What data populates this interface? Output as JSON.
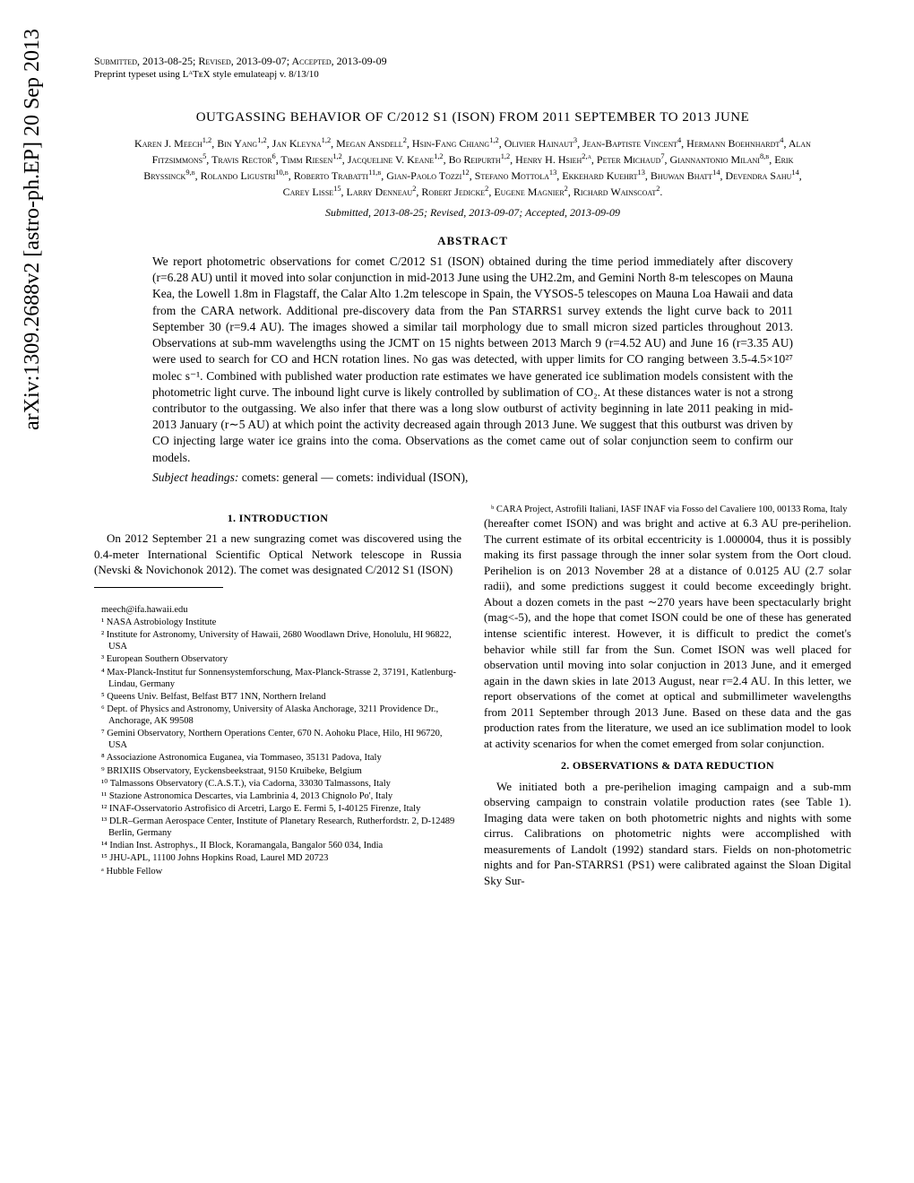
{
  "arxiv": "arXiv:1309.2688v2  [astro-ph.EP]  20 Sep 2013",
  "header": {
    "submitted": "Submitted, 2013-08-25; Revised, 2013-09-07; Accepted, 2013-09-09",
    "preprint": "Preprint typeset using LᴬTᴇX style emulateapj v. 8/13/10"
  },
  "title": "OUTGASSING BEHAVIOR OF C/2012 S1 (ISON) FROM 2011 SEPTEMBER TO 2013 JUNE",
  "authors_html": "Karen J. Meech<sup>1,2</sup>, Bin Yang<sup>1,2</sup>, Jan Kleyna<sup>1,2</sup>, Megan Ansdell<sup>2</sup>, Hsin-Fang Chiang<sup>1,2</sup>, Olivier Hainaut<sup>3</sup>, Jean-Baptiste Vincent<sup>4</sup>, Hermann Boehnhardt<sup>4</sup>, Alan Fitzsimmons<sup>5</sup>, Travis Rector<sup>6</sup>, Timm Riesen<sup>1,2</sup>, Jacqueline V. Keane<sup>1,2</sup>, Bo Reipurth<sup>1,2</sup>, Henry H. Hsieh<sup>2,a</sup>, Peter Michaud<sup>7</sup>, Giannantonio Milani<sup>8,b</sup>, Erik Bryssinck<sup>9,b</sup>, Rolando Ligustri<sup>10,b</sup>, Roberto Trabatti<sup>11,b</sup>, Gian-Paolo Tozzi<sup>12</sup>, Stefano Mottola<sup>13</sup>, Ekkehard Kuehrt<sup>13</sup>, Bhuwan Bhatt<sup>14</sup>, Devendra Sahu<sup>14</sup>, Carey Lisse<sup>15</sup>, Larry Denneau<sup>2</sup>, Robert Jedicke<sup>2</sup>, Eugene Magnier<sup>2</sup>, Richard Wainscoat<sup>2</sup>.",
  "submitted_center": "Submitted, 2013-08-25; Revised, 2013-09-07; Accepted, 2013-09-09",
  "abstract": {
    "heading": "ABSTRACT",
    "body": "We report photometric observations for comet C/2012 S1 (ISON) obtained during the time period immediately after discovery (r=6.28 AU) until it moved into solar conjunction in mid-2013 June using the UH2.2m, and Gemini North 8-m telescopes on Mauna Kea, the Lowell 1.8m in Flagstaff, the Calar Alto 1.2m telescope in Spain, the VYSOS-5 telescopes on Mauna Loa Hawaii and data from the CARA network. Additional pre-discovery data from the Pan STARRS1 survey extends the light curve back to 2011 September 30 (r=9.4 AU). The images showed a similar tail morphology due to small micron sized particles throughout 2013. Observations at sub-mm wavelengths using the JCMT on 15 nights between 2013 March 9 (r=4.52 AU) and June 16 (r=3.35 AU) were used to search for CO and HCN rotation lines. No gas was detected, with upper limits for CO ranging between 3.5-4.5×10²⁷ molec s⁻¹. Combined with published water production rate estimates we have generated ice sublimation models consistent with the photometric light curve. The inbound light curve is likely controlled by sublimation of CO₂. At these distances water is not a strong contributor to the outgassing. We also infer that there was a long slow outburst of activity beginning in late 2011 peaking in mid-2013 January (r∼5 AU) at which point the activity decreased again through 2013 June. We suggest that this outburst was driven by CO injecting large water ice grains into the coma. Observations as the comet came out of solar conjunction seem to confirm our models.",
    "subject_label": "Subject headings:",
    "subject_text": " comets: general — comets: individual (ISON),"
  },
  "sections": {
    "intro": {
      "heading": "1.  INTRODUCTION",
      "p1": "On 2012 September 21 a new sungrazing comet was discovered using the 0.4-meter International Scientific Optical Network telescope in Russia (Nevski & Novichonok 2012). The comet was designated C/2012 S1 (ISON)",
      "p2": "(hereafter comet ISON) and was bright and active at 6.3 AU pre-perihelion. The current estimate of its orbital eccentricity is 1.000004, thus it is possibly making its first passage through the inner solar system from the Oort cloud. Perihelion is on 2013 November 28 at a distance of 0.0125 AU (2.7 solar radii), and some predictions suggest it could become exceedingly bright. About a dozen comets in the past ∼270 years have been spectacularly bright (mag<-5), and the hope that comet ISON could be one of these has generated intense scientific interest. However, it is difficult to predict the comet's behavior while still far from the Sun. Comet ISON was well placed for observation until moving into solar conjuction in 2013 June, and it emerged again in the dawn skies in late 2013 August, near r=2.4 AU. In this letter, we report observations of the comet at optical and submillimeter wavelengths from 2011 September through 2013 June. Based on these data and the gas production rates from the literature, we used an ice sublimation model to look at activity scenarios for when the comet emerged from solar conjunction."
    },
    "obs": {
      "heading": "2.  OBSERVATIONS & DATA REDUCTION",
      "p1": "We initiated both a pre-perihelion imaging campaign and a sub-mm observing campaign to constrain volatile production rates (see Table 1). Imaging data were taken on both photometric nights and nights with some cirrus. Calibrations on photometric nights were accomplished with measurements of Landolt (1992) standard stars. Fields on non-photometric nights and for Pan-STARRS1 (PS1) were calibrated against the Sloan Digital Sky Sur-"
    }
  },
  "email": "meech@ifa.hawaii.edu",
  "affiliations": [
    "¹ NASA Astrobiology Institute",
    "² Institute for Astronomy, University of Hawaii, 2680 Woodlawn Drive, Honolulu, HI 96822, USA",
    "³ European Southern Observatory",
    "⁴ Max-Planck-Institut fur Sonnensystemforschung, Max-Planck-Strasse 2, 37191, Katlenburg-Lindau, Germany",
    "⁵ Queens Univ. Belfast, Belfast BT7 1NN, Northern Ireland",
    "⁶ Dept. of Physics and Astronomy, University of Alaska Anchorage, 3211 Providence Dr., Anchorage, AK 99508",
    "⁷ Gemini Observatory, Northern Operations Center, 670 N. Aohoku Place, Hilo, HI 96720, USA",
    "⁸ Associazione Astronomica Euganea, via Tommaseo, 35131 Padova, Italy",
    "⁹ BRIXIIS Observatory, Eyckensbeekstraat, 9150 Kruibeke, Belgium",
    "¹⁰ Talmassons Observatory (C.A.S.T.), via Cadorna, 33030 Talmassons, Italy",
    "¹¹ Stazione Astronomica Descartes, via Lambrinia 4, 2013 Chignolo Po', Italy",
    "¹² INAF-Osservatorio Astrofisico di Arcetri, Largo E. Fermi 5, I-40125 Firenze, Italy",
    "¹³ DLR–German Aerospace Center, Institute of Planetary Research, Rutherfordstr. 2, D-12489 Berlin, Germany",
    "¹⁴ Indian Inst. Astrophys., II Block, Koramangala, Bangalor 560 034, India",
    "¹⁵ JHU-APL, 11100 Johns Hopkins Road, Laurel MD 20723",
    "ᵃ Hubble Fellow",
    "ᵇ CARA Project, Astrofili Italiani, IASF INAF via Fosso del Cavaliere 100, 00133 Roma, Italy"
  ]
}
